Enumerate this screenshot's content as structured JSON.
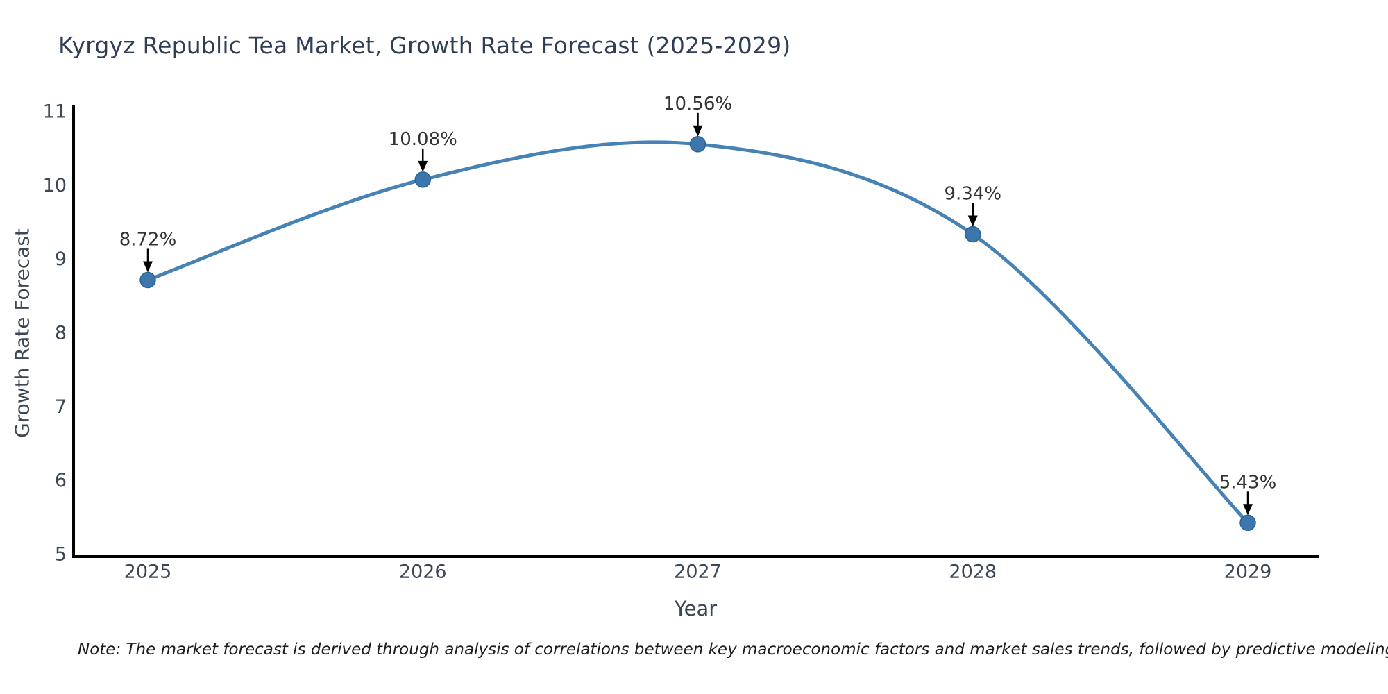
{
  "title": {
    "text": "Kyrgyz Republic Tea Market, Growth Rate Forecast (2025-2029)",
    "color": "#2f3e55"
  },
  "note": {
    "text": "Note: The market forecast is derived through analysis of correlations between key macroeconomic factors and market sales trends, followed by predictive modeling to project future sales"
  },
  "chart_data": {
    "type": "line",
    "line_shape": "spline",
    "x": [
      2025,
      2026,
      2027,
      2028,
      2029
    ],
    "series": [
      {
        "name": "Growth Rate Forecast",
        "values": [
          8.72,
          10.08,
          10.56,
          9.34,
          5.43
        ]
      }
    ],
    "point_labels": [
      "8.72%",
      "10.08%",
      "10.56%",
      "9.34%",
      "5.43%"
    ],
    "xlabel": "Year",
    "ylabel": "Growth Rate Forecast",
    "ylim": [
      5,
      11
    ],
    "yticks": [
      5,
      6,
      7,
      8,
      9,
      10,
      11
    ],
    "grid": false,
    "legend": "none",
    "colors": {
      "line": "#4682b4",
      "marker": "#3c76ad",
      "marker_edge": "#2a628f",
      "axis_spine": "#000000",
      "tick_label": "#3b4754",
      "axis_title": "#3b4754",
      "annotation_text": "#333333",
      "annotation_arrow": "#000000"
    }
  }
}
